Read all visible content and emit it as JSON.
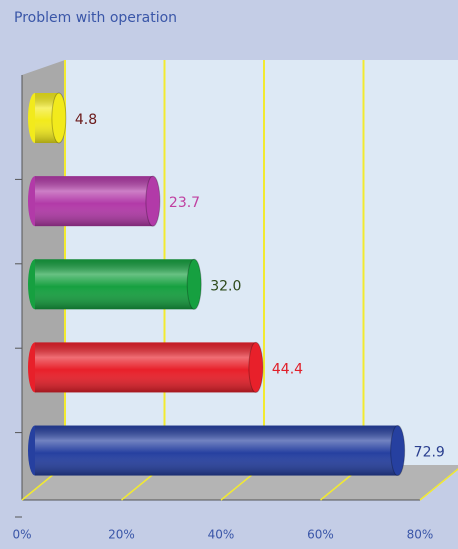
{
  "chart_data": {
    "type": "bar",
    "orientation": "horizontal",
    "title": "Problem with operation",
    "categories": [
      null,
      null,
      null,
      null,
      null
    ],
    "values": [
      4.8,
      23.7,
      32.0,
      44.4,
      72.9
    ],
    "value_labels": [
      "4.8",
      "23.7",
      "32.0",
      "44.4",
      "72.9"
    ],
    "colors": [
      "#f2ea1c",
      "#b23aa8",
      "#16a040",
      "#e8202a",
      "#2640a0"
    ],
    "label_colors": [
      "#6b1a1a",
      "#c040a0",
      "#2d4a1a",
      "#e0202a",
      "#2a3f8f"
    ],
    "xlim": [
      0,
      80
    ],
    "xticks": [
      {
        "value": 0,
        "label": "0%"
      },
      {
        "value": 20,
        "label": "20%"
      },
      {
        "value": 40,
        "label": "40%"
      },
      {
        "value": 60,
        "label": "60%"
      },
      {
        "value": 80,
        "label": "80%"
      }
    ],
    "grid": true
  }
}
